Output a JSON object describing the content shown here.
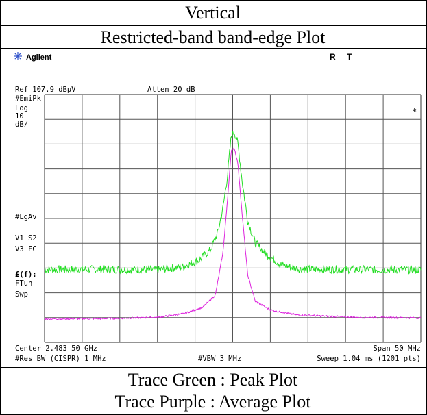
{
  "header": {
    "title": "Vertical",
    "subtitle": "Restricted-band band-edge Plot"
  },
  "analyzer": {
    "brand": "Agilent",
    "status_r": "R",
    "status_t": "T",
    "ref_level": "Ref 107.9 dBμV",
    "atten": "Atten 20 dB",
    "detector": "#EmiPk",
    "scale_type": "Log",
    "scale_value": "10",
    "scale_unit": "dB/",
    "marker_symbol": "*",
    "lgav": "#LgAv",
    "v1_s2": "V1  S2",
    "v3_fc": "V3  FC",
    "ff": "£(f):",
    "ftun": "FTun",
    "swp": "Swp",
    "center": "Center 2.483 50 GHz",
    "span": "Span 50 MHz",
    "res_bw": "#Res BW (CISPR) 1 MHz",
    "vbw": "#VBW 3 MHz",
    "sweep": "Sweep 1.04 ms (1201 pts)"
  },
  "legend": {
    "green": "Trace Green : Peak Plot",
    "purple": "Trace Purple : Average Plot"
  },
  "colors": {
    "peak": "#22dd22",
    "average": "#dd22dd",
    "grid": "#555555"
  },
  "chart_data": {
    "type": "line",
    "title": "Restricted-band band-edge Plot",
    "x_unit": "GHz",
    "xlim": [
      2.4585,
      2.5085
    ],
    "ylim": [
      7.9,
      107.9
    ],
    "y_scale_db_per_div": 10,
    "grid": true,
    "series": [
      {
        "name": "Trace Green : Peak Plot",
        "points": [
          [
            2.4585,
            37.3
          ],
          [
            2.466,
            37.4
          ],
          [
            2.4735,
            37.2
          ],
          [
            2.477,
            38.5
          ],
          [
            2.479,
            41.0
          ],
          [
            2.4805,
            45.0
          ],
          [
            2.4815,
            52.0
          ],
          [
            2.4822,
            62.0
          ],
          [
            2.4828,
            75.0
          ],
          [
            2.4833,
            91.0
          ],
          [
            2.4837,
            93.0
          ],
          [
            2.4842,
            88.0
          ],
          [
            2.4848,
            72.0
          ],
          [
            2.4855,
            57.0
          ],
          [
            2.4865,
            48.0
          ],
          [
            2.488,
            43.5
          ],
          [
            2.49,
            39.0
          ],
          [
            2.4925,
            37.5
          ],
          [
            2.5,
            37.3
          ],
          [
            2.5085,
            37.2
          ]
        ]
      },
      {
        "name": "Trace Purple : Average Plot",
        "points": [
          [
            2.4585,
            17.4
          ],
          [
            2.466,
            17.5
          ],
          [
            2.4735,
            18.0
          ],
          [
            2.477,
            19.5
          ],
          [
            2.4795,
            22.0
          ],
          [
            2.4812,
            27.0
          ],
          [
            2.4822,
            44.0
          ],
          [
            2.4828,
            65.0
          ],
          [
            2.4833,
            85.0
          ],
          [
            2.4837,
            86.5
          ],
          [
            2.4842,
            80.0
          ],
          [
            2.4848,
            58.0
          ],
          [
            2.4855,
            35.0
          ],
          [
            2.4865,
            24.5
          ],
          [
            2.4885,
            21.0
          ],
          [
            2.492,
            19.0
          ],
          [
            2.5,
            18.0
          ],
          [
            2.5085,
            17.8
          ]
        ]
      }
    ]
  }
}
